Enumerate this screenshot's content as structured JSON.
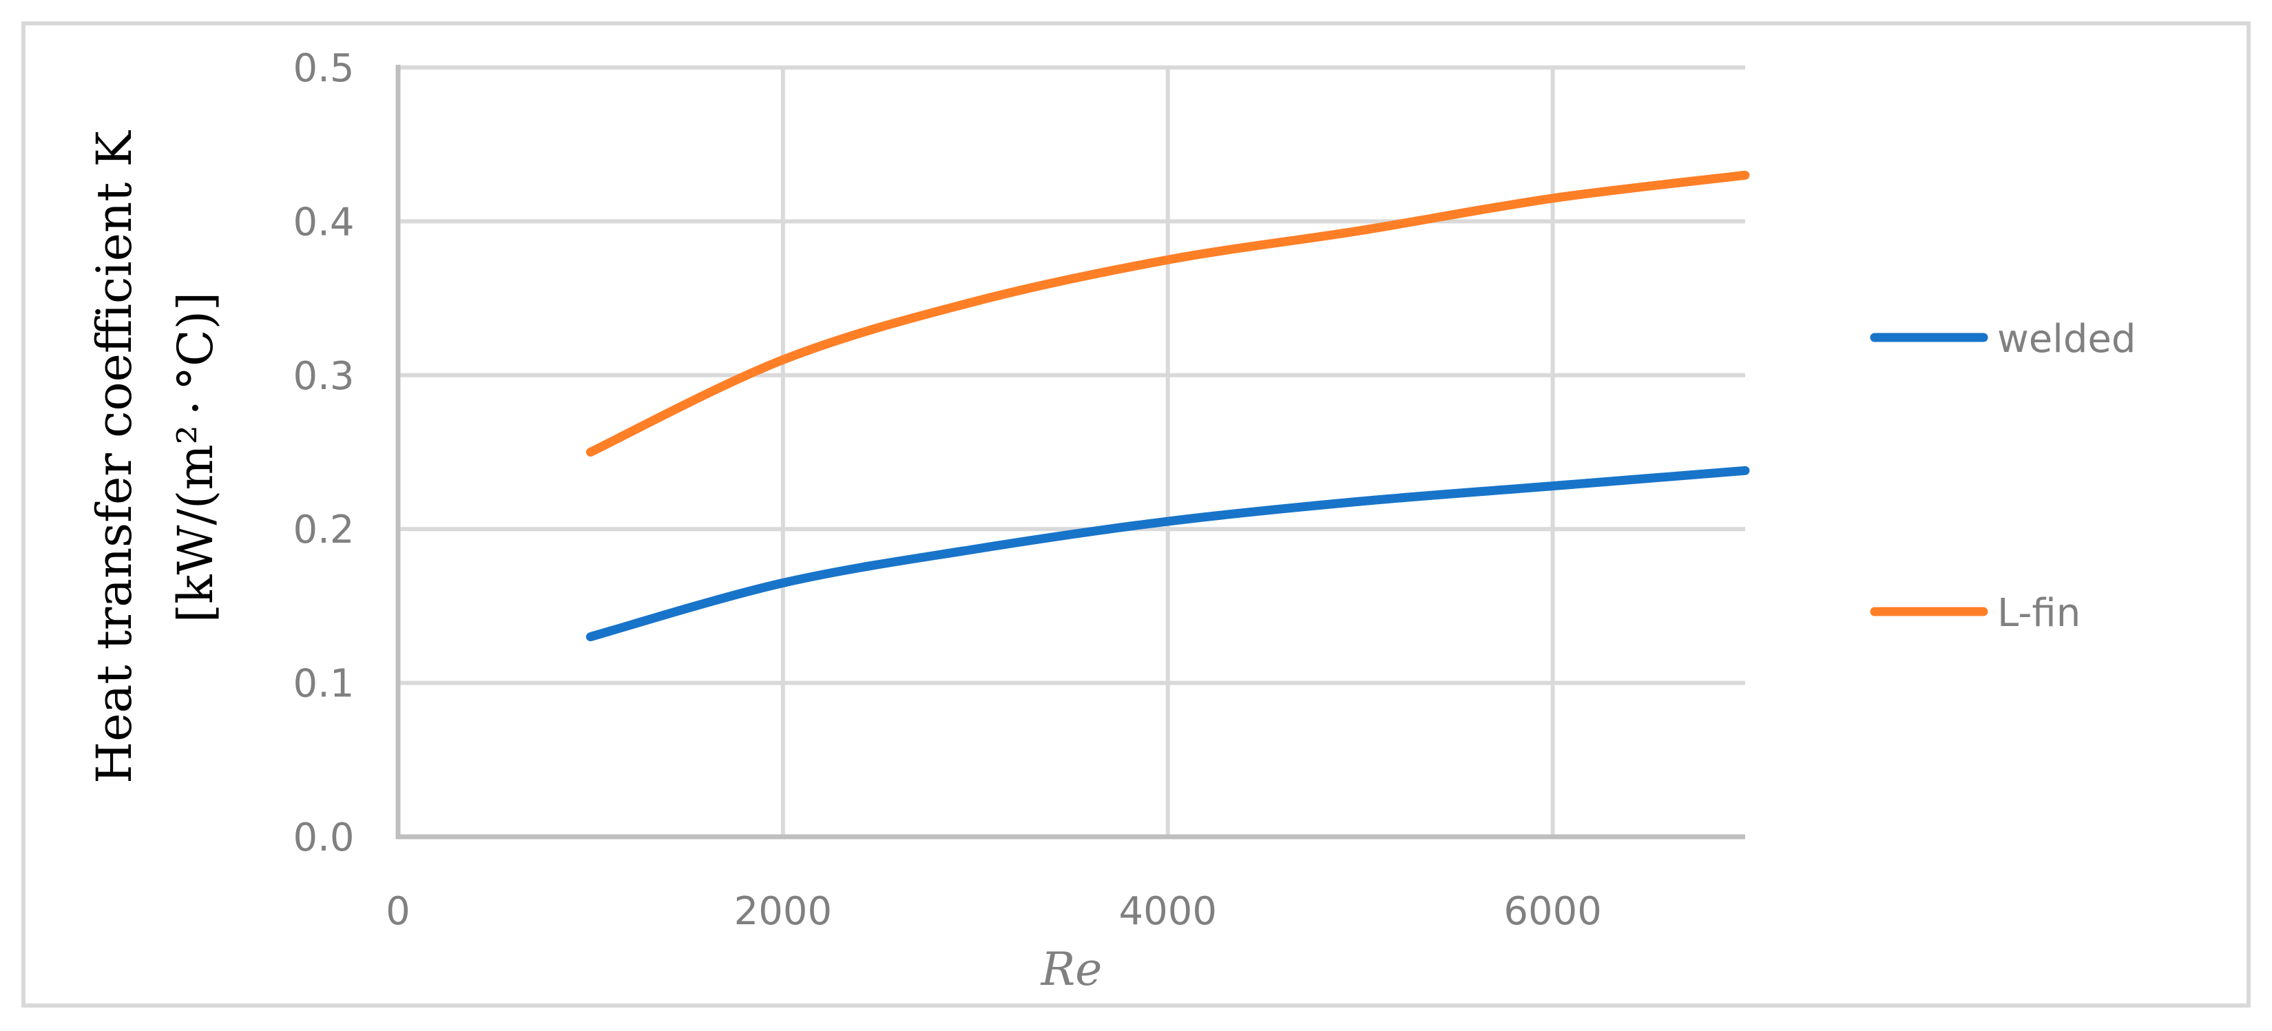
{
  "chart_data": {
    "type": "line",
    "title": "",
    "xlabel": "Re",
    "ylabel_line1": "Heat transfer coefficient K",
    "ylabel_line2": "[kW/(m² · °C)]",
    "xlim": [
      0,
      7000
    ],
    "ylim": [
      0,
      0.5
    ],
    "x_ticks": [
      "0",
      "2000",
      "4000",
      "6000"
    ],
    "x_tick_values": [
      0,
      2000,
      4000,
      6000
    ],
    "y_ticks": [
      "0.0",
      "0.1",
      "0.2",
      "0.3",
      "0.4",
      "0.5"
    ],
    "y_tick_values": [
      0,
      0.1,
      0.2,
      0.3,
      0.4,
      0.5
    ],
    "grid": true,
    "legend_position": "right",
    "x": [
      1000,
      2000,
      3000,
      4000,
      5000,
      6000,
      7000
    ],
    "series": [
      {
        "name": "welded",
        "color": "#1874c9",
        "values": [
          0.13,
          0.165,
          0.187,
          0.205,
          0.218,
          0.228,
          0.238
        ]
      },
      {
        "name": "L-fin",
        "color": "#ff7f27",
        "values": [
          0.25,
          0.31,
          0.348,
          0.375,
          0.394,
          0.415,
          0.43
        ]
      }
    ]
  }
}
